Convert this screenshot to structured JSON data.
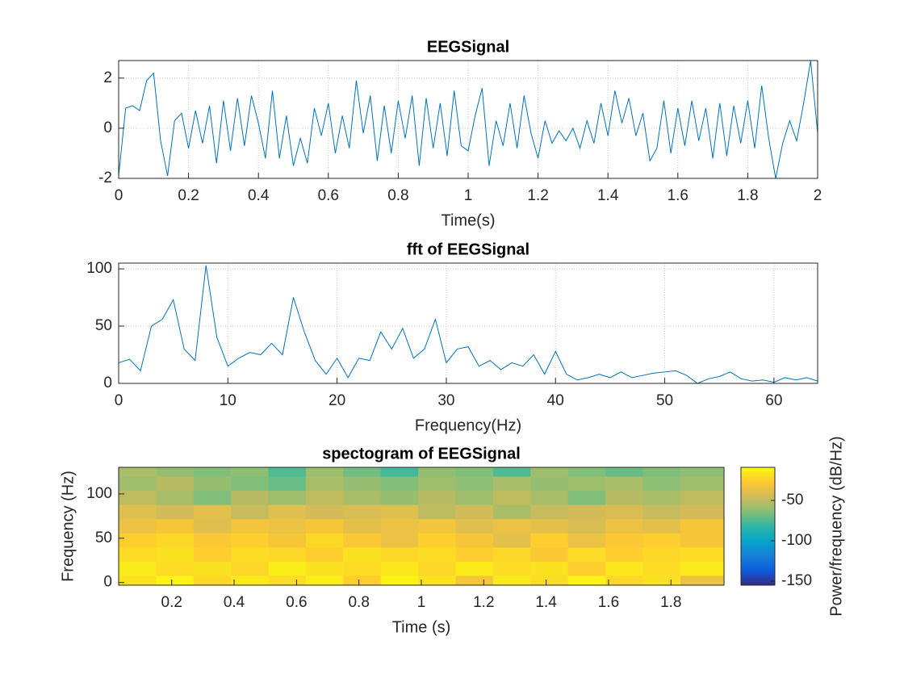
{
  "chart_data": [
    {
      "type": "line",
      "title": "EEGSignal",
      "xlabel": "Time(s)",
      "color": "#0072bd",
      "grid": true,
      "x": [
        0,
        0.02,
        0.04,
        0.06,
        0.08,
        0.1,
        0.12,
        0.14,
        0.16,
        0.18,
        0.2,
        0.22,
        0.24,
        0.26,
        0.28,
        0.3,
        0.32,
        0.34,
        0.36,
        0.38,
        0.4,
        0.42,
        0.44,
        0.46,
        0.48,
        0.5,
        0.52,
        0.54,
        0.56,
        0.58,
        0.6,
        0.62,
        0.64,
        0.66,
        0.68,
        0.7,
        0.72,
        0.74,
        0.76,
        0.78,
        0.8,
        0.82,
        0.84,
        0.86,
        0.88,
        0.9,
        0.92,
        0.94,
        0.96,
        0.98,
        1,
        1.02,
        1.04,
        1.06,
        1.08,
        1.1,
        1.12,
        1.14,
        1.16,
        1.18,
        1.2,
        1.22,
        1.24,
        1.26,
        1.28,
        1.3,
        1.32,
        1.34,
        1.36,
        1.38,
        1.4,
        1.42,
        1.44,
        1.46,
        1.48,
        1.5,
        1.52,
        1.54,
        1.56,
        1.58,
        1.6,
        1.62,
        1.64,
        1.66,
        1.68,
        1.7,
        1.72,
        1.74,
        1.76,
        1.78,
        1.8,
        1.82,
        1.84,
        1.86,
        1.88,
        1.9,
        1.92,
        1.94,
        1.96,
        1.98,
        2
      ],
      "values": [
        -1.9,
        0.8,
        0.9,
        0.7,
        1.9,
        2.2,
        -0.5,
        -1.9,
        0.3,
        0.6,
        -0.8,
        0.7,
        -0.6,
        0.9,
        -1.4,
        1.1,
        -0.9,
        1.2,
        -0.7,
        1.3,
        0.2,
        -1.2,
        1.5,
        -1.2,
        0.5,
        -1.5,
        -0.4,
        -1.4,
        0.8,
        -0.3,
        1.0,
        -1.0,
        0.5,
        -0.8,
        1.9,
        -0.2,
        1.3,
        -1.3,
        0.9,
        -1.0,
        1.1,
        -0.4,
        1.3,
        -1.5,
        1.2,
        -0.8,
        1.0,
        -1.1,
        1.5,
        -0.7,
        -0.9,
        0.5,
        1.6,
        -1.5,
        0.3,
        -0.7,
        1.0,
        -0.8,
        1.3,
        -0.2,
        -1.2,
        0.3,
        -0.6,
        -0.1,
        -0.5,
        0.0,
        -0.8,
        0.3,
        -0.6,
        1.0,
        -0.3,
        1.5,
        0.2,
        1.2,
        -0.3,
        0.6,
        -1.3,
        -0.8,
        1.1,
        -1.0,
        0.8,
        -0.7,
        1.1,
        -0.5,
        0.8,
        -1.2,
        1.0,
        -1.1,
        0.9,
        -0.6,
        1.1,
        -0.8,
        1.7,
        -0.4,
        -2.0,
        -0.6,
        0.3,
        -0.5,
        1.0,
        2.7,
        -0.2
      ],
      "xlim": [
        0,
        2
      ],
      "xticks": [
        0,
        0.2,
        0.4,
        0.6,
        0.8,
        1,
        1.2,
        1.4,
        1.6,
        1.8,
        2
      ],
      "ylim": [
        -2,
        2.7
      ],
      "yticks": [
        -2,
        0,
        2
      ]
    },
    {
      "type": "line",
      "title": "fft of EEGSignal",
      "xlabel": "Frequency(Hz)",
      "color": "#0072bd",
      "grid": true,
      "x": [
        0,
        1,
        2,
        3,
        4,
        5,
        6,
        7,
        8,
        9,
        10,
        11,
        12,
        13,
        14,
        15,
        16,
        17,
        18,
        19,
        20,
        21,
        22,
        23,
        24,
        25,
        26,
        27,
        28,
        29,
        30,
        31,
        32,
        33,
        34,
        35,
        36,
        37,
        38,
        39,
        40,
        41,
        42,
        43,
        44,
        45,
        46,
        47,
        48,
        49,
        50,
        51,
        52,
        53,
        54,
        55,
        56,
        57,
        58,
        59,
        60,
        61,
        62,
        63,
        64
      ],
      "values": [
        18,
        21,
        11,
        50,
        56,
        73,
        30,
        20,
        103,
        40,
        15,
        22,
        27,
        25,
        35,
        25,
        75,
        45,
        20,
        8,
        22,
        5,
        22,
        20,
        45,
        30,
        48,
        22,
        30,
        56,
        18,
        30,
        32,
        15,
        20,
        12,
        18,
        15,
        25,
        8,
        28,
        8,
        3,
        5,
        8,
        5,
        10,
        5,
        7,
        9,
        10,
        11,
        7,
        0,
        4,
        6,
        10,
        4,
        2,
        3,
        1,
        5,
        3,
        5,
        2
      ],
      "xlim": [
        0,
        64
      ],
      "xticks": [
        0,
        10,
        20,
        30,
        40,
        50,
        60
      ],
      "ylim": [
        0,
        105
      ],
      "yticks": [
        0,
        50,
        100
      ]
    },
    {
      "type": "heatmap",
      "title": "spectogram of EEGSignal",
      "xlabel": "Time (s)",
      "ylabel": "Frequency (Hz)",
      "colormap": "parula",
      "colorbar_label": "Power/frequency (dB/Hz)",
      "x": [
        0.09,
        0.21,
        0.33,
        0.45,
        0.57,
        0.69,
        0.81,
        0.93,
        1.05,
        1.17,
        1.29,
        1.41,
        1.53,
        1.65,
        1.77,
        1.89
      ],
      "y": [
        0,
        16,
        32,
        48,
        64,
        80,
        96,
        112,
        128
      ],
      "values": [
        [
          -18,
          -12,
          -22,
          -15,
          -20,
          -14,
          -25,
          -12,
          -18,
          -30,
          -15,
          -20,
          -12,
          -22,
          -18,
          -35
        ],
        [
          -15,
          -20,
          -18,
          -22,
          -14,
          -18,
          -20,
          -16,
          -22,
          -15,
          -20,
          -18,
          -25,
          -16,
          -20,
          -15
        ],
        [
          -20,
          -18,
          -25,
          -20,
          -22,
          -25,
          -18,
          -22,
          -20,
          -25,
          -22,
          -28,
          -20,
          -25,
          -22,
          -20
        ],
        [
          -25,
          -22,
          -28,
          -25,
          -30,
          -22,
          -28,
          -35,
          -25,
          -30,
          -38,
          -25,
          -35,
          -28,
          -25,
          -30
        ],
        [
          -35,
          -30,
          -40,
          -32,
          -35,
          -30,
          -38,
          -35,
          -32,
          -40,
          -35,
          -38,
          -42,
          -35,
          -38,
          -30
        ],
        [
          -40,
          -45,
          -38,
          -48,
          -40,
          -45,
          -42,
          -40,
          -50,
          -45,
          -55,
          -48,
          -45,
          -42,
          -48,
          -45
        ],
        [
          -50,
          -55,
          -65,
          -52,
          -58,
          -50,
          -55,
          -60,
          -52,
          -58,
          -50,
          -55,
          -65,
          -52,
          -55,
          -50
        ],
        [
          -58,
          -52,
          -60,
          -65,
          -70,
          -55,
          -60,
          -65,
          -58,
          -62,
          -55,
          -60,
          -58,
          -55,
          -62,
          -58
        ],
        [
          -55,
          -60,
          -65,
          -62,
          -75,
          -58,
          -68,
          -78,
          -60,
          -65,
          -75,
          -58,
          -65,
          -70,
          -65,
          -62
        ]
      ],
      "xlim": [
        0.03,
        1.97
      ],
      "xticks": [
        0.2,
        0.4,
        0.6,
        0.8,
        1,
        1.2,
        1.4,
        1.6,
        1.8
      ],
      "ylim": [
        -3,
        130
      ],
      "yticks": [
        0,
        50,
        100
      ],
      "clim": [
        -155,
        -9
      ],
      "cticks": [
        -150,
        -100,
        -50
      ]
    }
  ]
}
